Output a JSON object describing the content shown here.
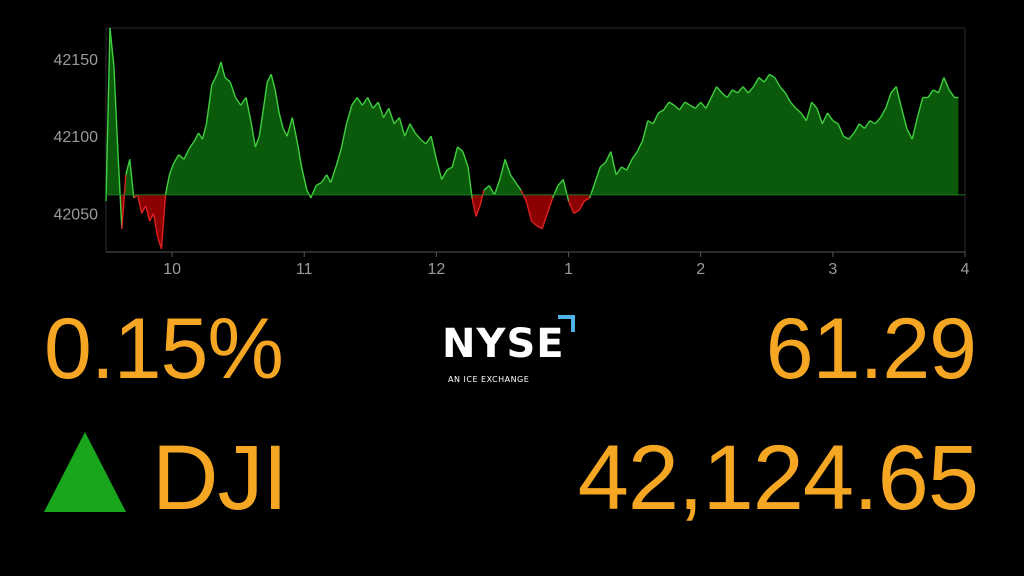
{
  "chart_data": {
    "type": "area",
    "baseline": 42062,
    "ylim": [
      42025,
      42170
    ],
    "xlim": [
      9.5,
      16.0
    ],
    "yticks": [
      42050,
      42100,
      42150
    ],
    "ytick_labels": [
      "42050",
      "42100",
      "42150"
    ],
    "xticks": [
      10,
      11,
      12,
      13,
      14,
      15,
      16
    ],
    "xtick_labels": [
      "10",
      "11",
      "12",
      "1",
      "2",
      "3",
      "4"
    ],
    "colors": {
      "above": "#0b5a0b",
      "above_line": "#3fcf3f",
      "below": "#8b0000",
      "below_line": "#e02020",
      "axis": "#555555",
      "tick_text": "#9a9a9a"
    },
    "series": [
      {
        "points": [
          [
            9.5,
            42058
          ],
          [
            9.53,
            42170
          ],
          [
            9.56,
            42145
          ],
          [
            9.59,
            42090
          ],
          [
            9.62,
            42040
          ],
          [
            9.65,
            42075
          ],
          [
            9.68,
            42085
          ],
          [
            9.71,
            42060
          ],
          [
            9.74,
            42062
          ],
          [
            9.77,
            42050
          ],
          [
            9.8,
            42055
          ],
          [
            9.83,
            42045
          ],
          [
            9.86,
            42050
          ],
          [
            9.89,
            42035
          ],
          [
            9.92,
            42027
          ],
          [
            9.95,
            42062
          ],
          [
            9.98,
            42075
          ],
          [
            10.01,
            42082
          ],
          [
            10.05,
            42088
          ],
          [
            10.09,
            42085
          ],
          [
            10.13,
            42092
          ],
          [
            10.17,
            42097
          ],
          [
            10.2,
            42102
          ],
          [
            10.23,
            42098
          ],
          [
            10.26,
            42108
          ],
          [
            10.3,
            42133
          ],
          [
            10.34,
            42140
          ],
          [
            10.37,
            42148
          ],
          [
            10.4,
            42138
          ],
          [
            10.44,
            42135
          ],
          [
            10.48,
            42125
          ],
          [
            10.52,
            42120
          ],
          [
            10.56,
            42125
          ],
          [
            10.6,
            42108
          ],
          [
            10.63,
            42093
          ],
          [
            10.66,
            42100
          ],
          [
            10.69,
            42117
          ],
          [
            10.72,
            42135
          ],
          [
            10.75,
            42140
          ],
          [
            10.78,
            42130
          ],
          [
            10.81,
            42115
          ],
          [
            10.84,
            42105
          ],
          [
            10.87,
            42100
          ],
          [
            10.91,
            42112
          ],
          [
            10.95,
            42095
          ],
          [
            10.98,
            42080
          ],
          [
            11.02,
            42065
          ],
          [
            11.05,
            42060
          ],
          [
            11.09,
            42068
          ],
          [
            11.13,
            42070
          ],
          [
            11.17,
            42075
          ],
          [
            11.2,
            42070
          ],
          [
            11.24,
            42080
          ],
          [
            11.28,
            42092
          ],
          [
            11.32,
            42108
          ],
          [
            11.36,
            42120
          ],
          [
            11.4,
            42125
          ],
          [
            11.44,
            42120
          ],
          [
            11.48,
            42125
          ],
          [
            11.52,
            42118
          ],
          [
            11.56,
            42122
          ],
          [
            11.6,
            42112
          ],
          [
            11.64,
            42118
          ],
          [
            11.68,
            42108
          ],
          [
            11.72,
            42112
          ],
          [
            11.76,
            42100
          ],
          [
            11.8,
            42108
          ],
          [
            11.84,
            42102
          ],
          [
            11.88,
            42098
          ],
          [
            11.92,
            42095
          ],
          [
            11.96,
            42100
          ],
          [
            12.0,
            42085
          ],
          [
            12.04,
            42072
          ],
          [
            12.08,
            42078
          ],
          [
            12.12,
            42080
          ],
          [
            12.16,
            42093
          ],
          [
            12.2,
            42090
          ],
          [
            12.24,
            42080
          ],
          [
            12.27,
            42060
          ],
          [
            12.3,
            42048
          ],
          [
            12.33,
            42055
          ],
          [
            12.36,
            42065
          ],
          [
            12.4,
            42068
          ],
          [
            12.44,
            42062
          ],
          [
            12.48,
            42072
          ],
          [
            12.52,
            42085
          ],
          [
            12.56,
            42075
          ],
          [
            12.6,
            42070
          ],
          [
            12.64,
            42065
          ],
          [
            12.68,
            42058
          ],
          [
            12.72,
            42045
          ],
          [
            12.76,
            42042
          ],
          [
            12.8,
            42040
          ],
          [
            12.84,
            42050
          ],
          [
            12.88,
            42060
          ],
          [
            12.92,
            42068
          ],
          [
            12.96,
            42072
          ],
          [
            13.0,
            42058
          ],
          [
            13.04,
            42050
          ],
          [
            13.08,
            42052
          ],
          [
            13.12,
            42058
          ],
          [
            13.16,
            42060
          ],
          [
            13.2,
            42070
          ],
          [
            13.24,
            42080
          ],
          [
            13.28,
            42083
          ],
          [
            13.32,
            42090
          ],
          [
            13.36,
            42075
          ],
          [
            13.4,
            42080
          ],
          [
            13.44,
            42078
          ],
          [
            13.48,
            42085
          ],
          [
            13.52,
            42090
          ],
          [
            13.56,
            42097
          ],
          [
            13.6,
            42110
          ],
          [
            13.64,
            42108
          ],
          [
            13.68,
            42115
          ],
          [
            13.72,
            42117
          ],
          [
            13.76,
            42122
          ],
          [
            13.8,
            42120
          ],
          [
            13.84,
            42117
          ],
          [
            13.88,
            42122
          ],
          [
            13.92,
            42120
          ],
          [
            13.96,
            42118
          ],
          [
            14.0,
            42122
          ],
          [
            14.04,
            42118
          ],
          [
            14.08,
            42125
          ],
          [
            14.12,
            42132
          ],
          [
            14.16,
            42128
          ],
          [
            14.2,
            42125
          ],
          [
            14.24,
            42130
          ],
          [
            14.28,
            42128
          ],
          [
            14.32,
            42132
          ],
          [
            14.36,
            42128
          ],
          [
            14.4,
            42132
          ],
          [
            14.44,
            42138
          ],
          [
            14.48,
            42135
          ],
          [
            14.52,
            42140
          ],
          [
            14.56,
            42138
          ],
          [
            14.6,
            42132
          ],
          [
            14.64,
            42128
          ],
          [
            14.68,
            42122
          ],
          [
            14.72,
            42118
          ],
          [
            14.76,
            42115
          ],
          [
            14.8,
            42110
          ],
          [
            14.84,
            42122
          ],
          [
            14.88,
            42118
          ],
          [
            14.92,
            42108
          ],
          [
            14.96,
            42115
          ],
          [
            15.0,
            42110
          ],
          [
            15.04,
            42108
          ],
          [
            15.08,
            42100
          ],
          [
            15.12,
            42098
          ],
          [
            15.16,
            42102
          ],
          [
            15.2,
            42108
          ],
          [
            15.24,
            42105
          ],
          [
            15.28,
            42110
          ],
          [
            15.32,
            42108
          ],
          [
            15.36,
            42112
          ],
          [
            15.4,
            42118
          ],
          [
            15.44,
            42128
          ],
          [
            15.48,
            42132
          ],
          [
            15.52,
            42118
          ],
          [
            15.56,
            42105
          ],
          [
            15.6,
            42098
          ],
          [
            15.64,
            42112
          ],
          [
            15.68,
            42125
          ],
          [
            15.72,
            42125
          ],
          [
            15.76,
            42130
          ],
          [
            15.8,
            42128
          ],
          [
            15.84,
            42138
          ],
          [
            15.88,
            42130
          ],
          [
            15.92,
            42125
          ],
          [
            15.95,
            42125
          ]
        ]
      }
    ]
  },
  "ticker": {
    "percent_change": "0.15%",
    "symbol": "DJI",
    "direction": "up",
    "arrow_color": "#19a51c",
    "point_change": "61.29",
    "value": "42,124.65",
    "text_color": "#f5a623"
  },
  "logo": {
    "word": "NYSE",
    "tagline": "AN ICE EXCHANGE",
    "corner_color": "#4fb3e8"
  }
}
